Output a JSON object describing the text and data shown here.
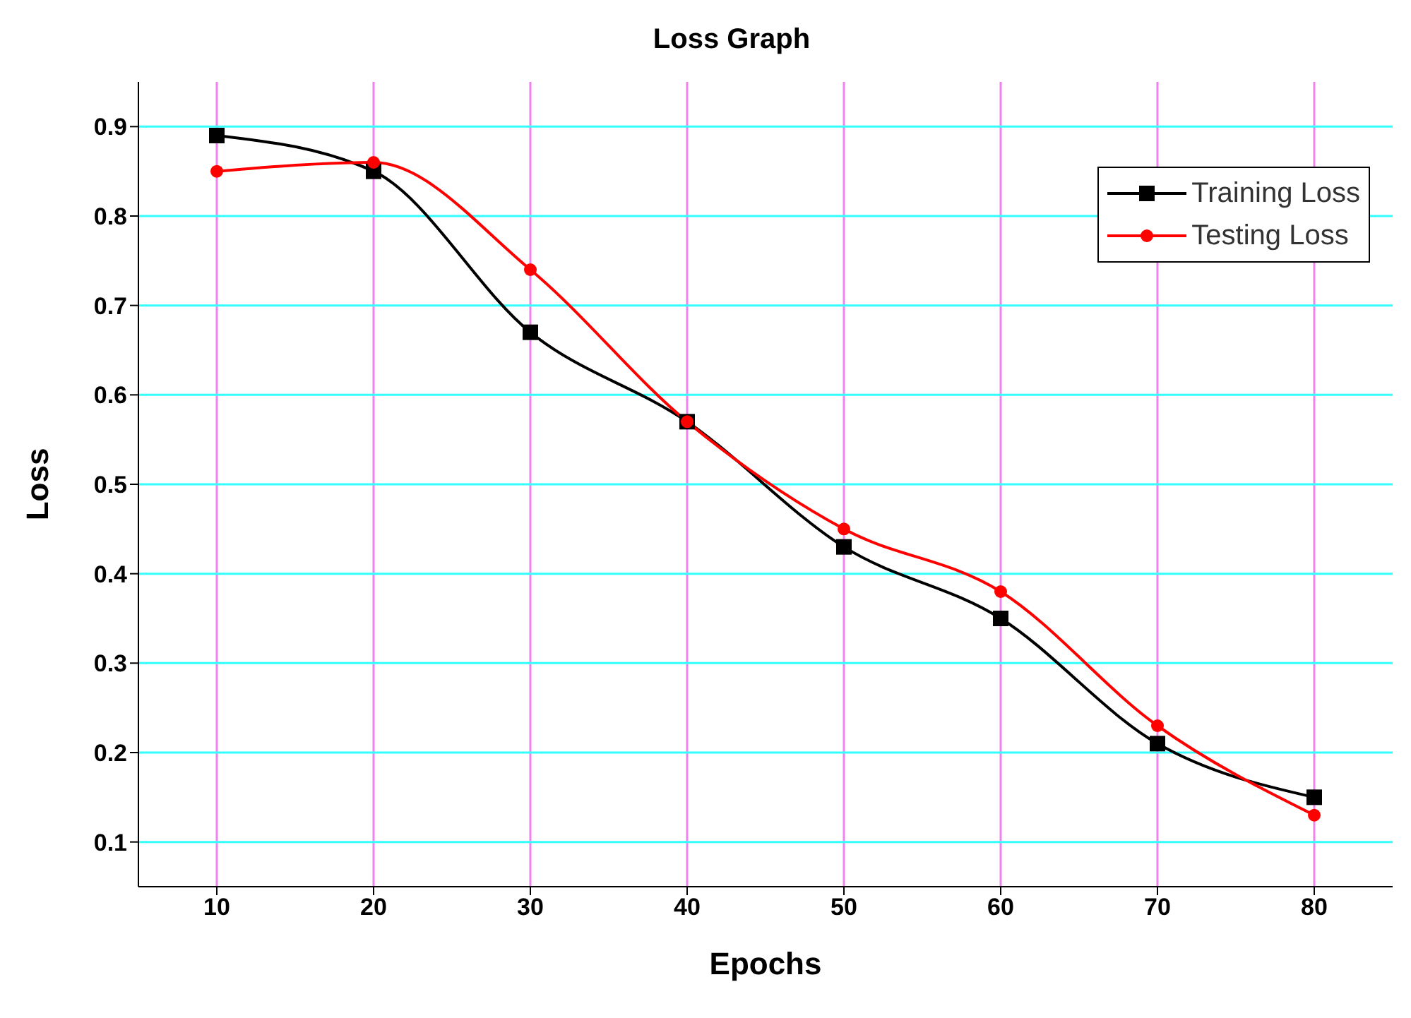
{
  "chart_data": {
    "type": "line",
    "title": "Loss Graph",
    "xlabel": "Epochs",
    "ylabel": "Loss",
    "x": [
      10,
      20,
      30,
      40,
      50,
      60,
      70,
      80
    ],
    "series": [
      {
        "name": "Training Loss",
        "color": "#000000",
        "marker": "square",
        "values": [
          0.89,
          0.85,
          0.67,
          0.57,
          0.43,
          0.35,
          0.21,
          0.15
        ]
      },
      {
        "name": "Testing Loss",
        "color": "#ff0000",
        "marker": "circle",
        "values": [
          0.85,
          0.86,
          0.74,
          0.57,
          0.45,
          0.38,
          0.23,
          0.13
        ]
      }
    ],
    "xlim": [
      5,
      85
    ],
    "xticks": [
      10,
      20,
      30,
      40,
      50,
      60,
      70,
      80
    ],
    "ylim": [
      0.05,
      0.95
    ],
    "yticks": [
      0.1,
      0.2,
      0.3,
      0.4,
      0.5,
      0.6,
      0.7,
      0.8,
      0.9
    ],
    "grid": true,
    "legend": "top right",
    "line_style": "solid"
  }
}
